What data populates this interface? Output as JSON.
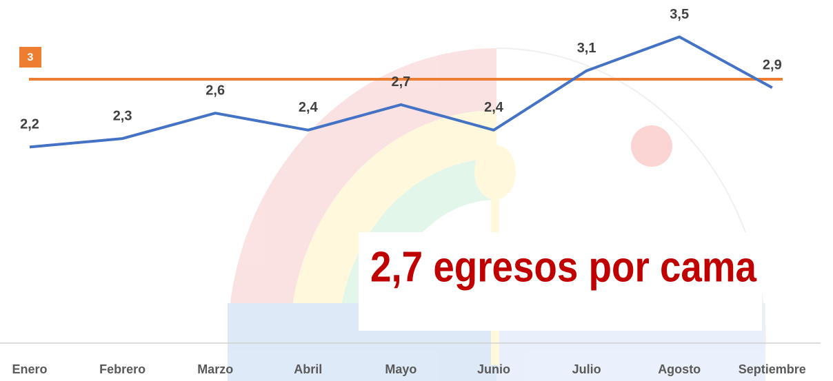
{
  "chart_data": {
    "type": "line",
    "categories": [
      "Enero",
      "Febrero",
      "Marzo",
      "Abril",
      "Mayo",
      "Junio",
      "Julio",
      "Agosto",
      "Septiembre"
    ],
    "values": [
      2.2,
      2.3,
      2.6,
      2.4,
      2.7,
      2.4,
      3.1,
      3.5,
      2.9
    ],
    "value_labels": [
      "2,2",
      "2,3",
      "2,6",
      "2,4",
      "2,7",
      "2,4",
      "3,1",
      "3,5",
      "2,9"
    ],
    "color": "#4472c4",
    "ylim": [
      0,
      4
    ],
    "reference_line": {
      "value": 3,
      "color": "#ed7d31"
    },
    "annotation": "2,7 egresos por cama"
  }
}
